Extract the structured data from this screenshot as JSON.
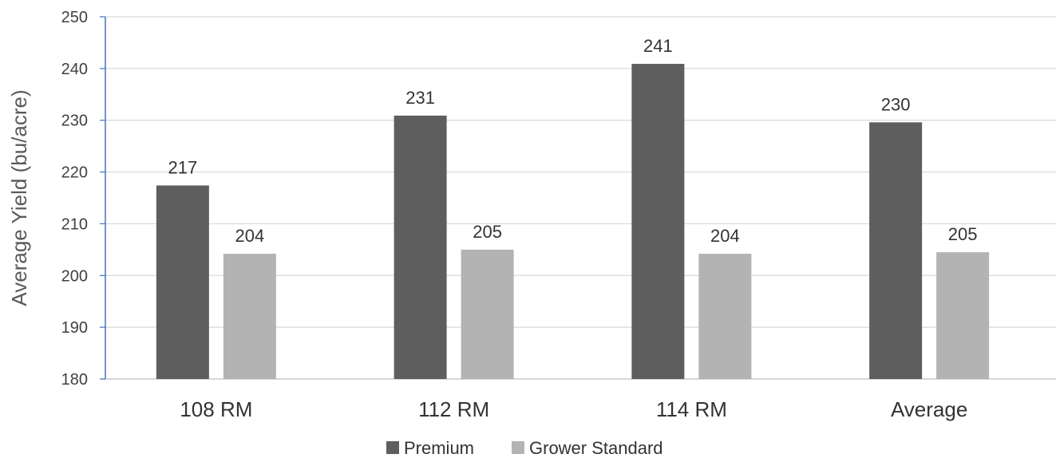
{
  "chart_data": {
    "type": "bar",
    "categories": [
      "108 RM",
      "112 RM",
      "114 RM",
      "Average"
    ],
    "series": [
      {
        "name": "Premium",
        "values": [
          217,
          231,
          241,
          230
        ],
        "color": "#5e5e5e"
      },
      {
        "name": "Grower Standard",
        "values": [
          204,
          205,
          204,
          205
        ],
        "color": "#b3b3b3"
      }
    ],
    "bar_values": [
      [
        217.4,
        230.9,
        240.9,
        229.6
      ],
      [
        204.2,
        205.0,
        204.2,
        204.5
      ]
    ],
    "title": "",
    "xlabel": "",
    "ylabel": "Average Yield (bu/acre)",
    "ylim": [
      180,
      250
    ],
    "yticks": [
      180,
      190,
      200,
      210,
      220,
      230,
      240,
      250
    ],
    "grid": true,
    "legend_position": "bottom",
    "colors": {
      "gridline": "#d9d9d9",
      "axis": "#4472c4"
    }
  }
}
